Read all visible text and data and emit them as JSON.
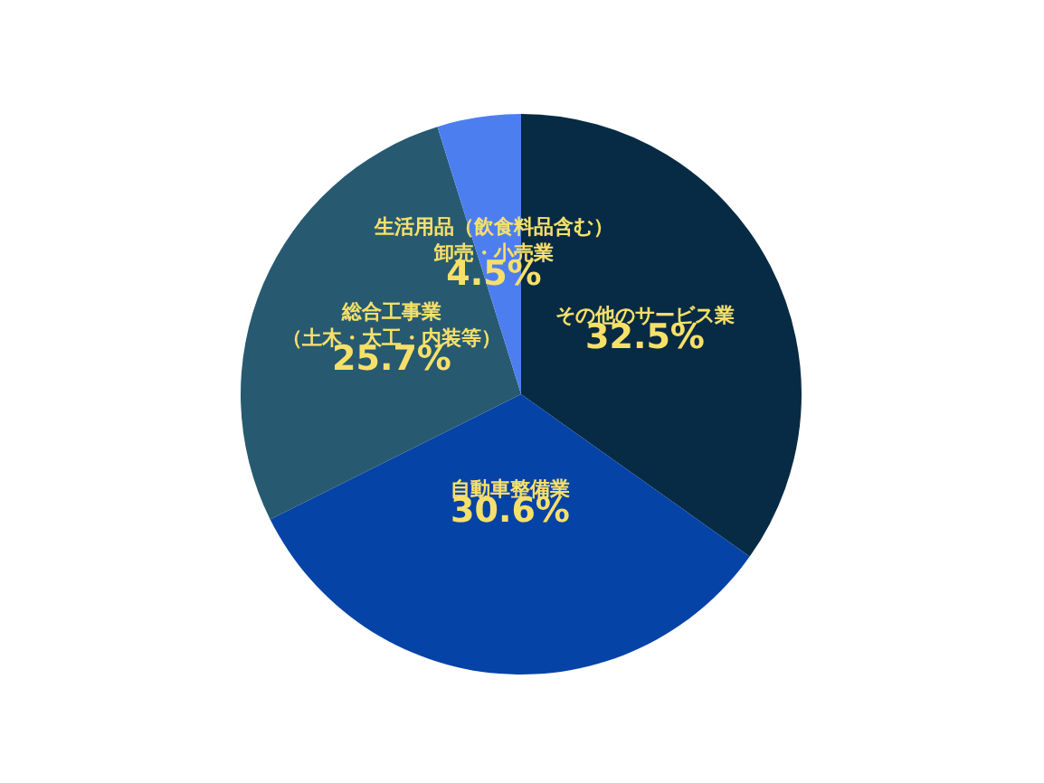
{
  "chart_data": {
    "type": "pie",
    "categories": [
      "その他のサービス業",
      "自動車整備業",
      "総合工事業（土木・大工・内装等）",
      "生活用品（飲食料品含む）卸売・小売業"
    ],
    "values": [
      32.5,
      30.6,
      25.7,
      4.5
    ],
    "value_labels": [
      "32.5%",
      "30.6%",
      "25.7%",
      "4.5%"
    ],
    "colors": [
      "#072b44",
      "#0643a6",
      "#275a70",
      "#4d7ef0"
    ],
    "legend": false
  }
}
